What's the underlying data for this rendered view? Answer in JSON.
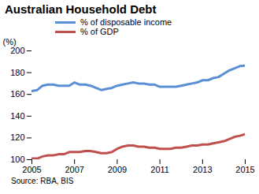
{
  "chart_data": {
    "type": "line",
    "title": "Australian Household Debt",
    "y_label": "(%)",
    "source": "Source: RBA, BIS",
    "x": [
      2005,
      2005.25,
      2005.5,
      2005.75,
      2006,
      2006.25,
      2006.5,
      2006.75,
      2007,
      2007.25,
      2007.5,
      2007.75,
      2008,
      2008.25,
      2008.5,
      2008.75,
      2009,
      2009.25,
      2009.5,
      2009.75,
      2010,
      2010.25,
      2010.5,
      2010.75,
      2011,
      2011.25,
      2011.5,
      2011.75,
      2012,
      2012.25,
      2012.5,
      2012.75,
      2013,
      2013.25,
      2013.5,
      2013.75,
      2014,
      2014.25,
      2014.5,
      2014.75,
      2015
    ],
    "series": [
      {
        "name": "% of disposable income",
        "color": "#5b8fd4",
        "values": [
          163,
          164,
          168,
          169,
          169,
          168,
          168,
          168,
          171,
          169,
          169,
          168,
          166,
          164,
          165,
          166,
          168,
          169,
          170,
          171,
          170,
          170,
          169,
          169,
          167,
          167,
          167,
          167,
          168,
          169,
          170,
          171,
          173,
          173,
          175,
          176,
          179,
          182,
          184,
          186,
          186.5
        ]
      },
      {
        "name": "% of GDP",
        "color": "#c0504d",
        "values": [
          101,
          101,
          103,
          104,
          104,
          105,
          105,
          107,
          107,
          107,
          108,
          108,
          107,
          106,
          106,
          107,
          110,
          112,
          113,
          113,
          112,
          112,
          111,
          111,
          110,
          110,
          110,
          111,
          111,
          112,
          113,
          113,
          114,
          114,
          115,
          116,
          117,
          119,
          121,
          122,
          123.5
        ]
      }
    ],
    "xlim": [
      2005,
      2015
    ],
    "xticks": [
      2005,
      2007,
      2009,
      2011,
      2013,
      2015
    ],
    "ylim": [
      100,
      200
    ],
    "yticks": [
      100,
      120,
      140,
      160,
      180,
      200
    ],
    "grid": false,
    "legend": "top"
  }
}
